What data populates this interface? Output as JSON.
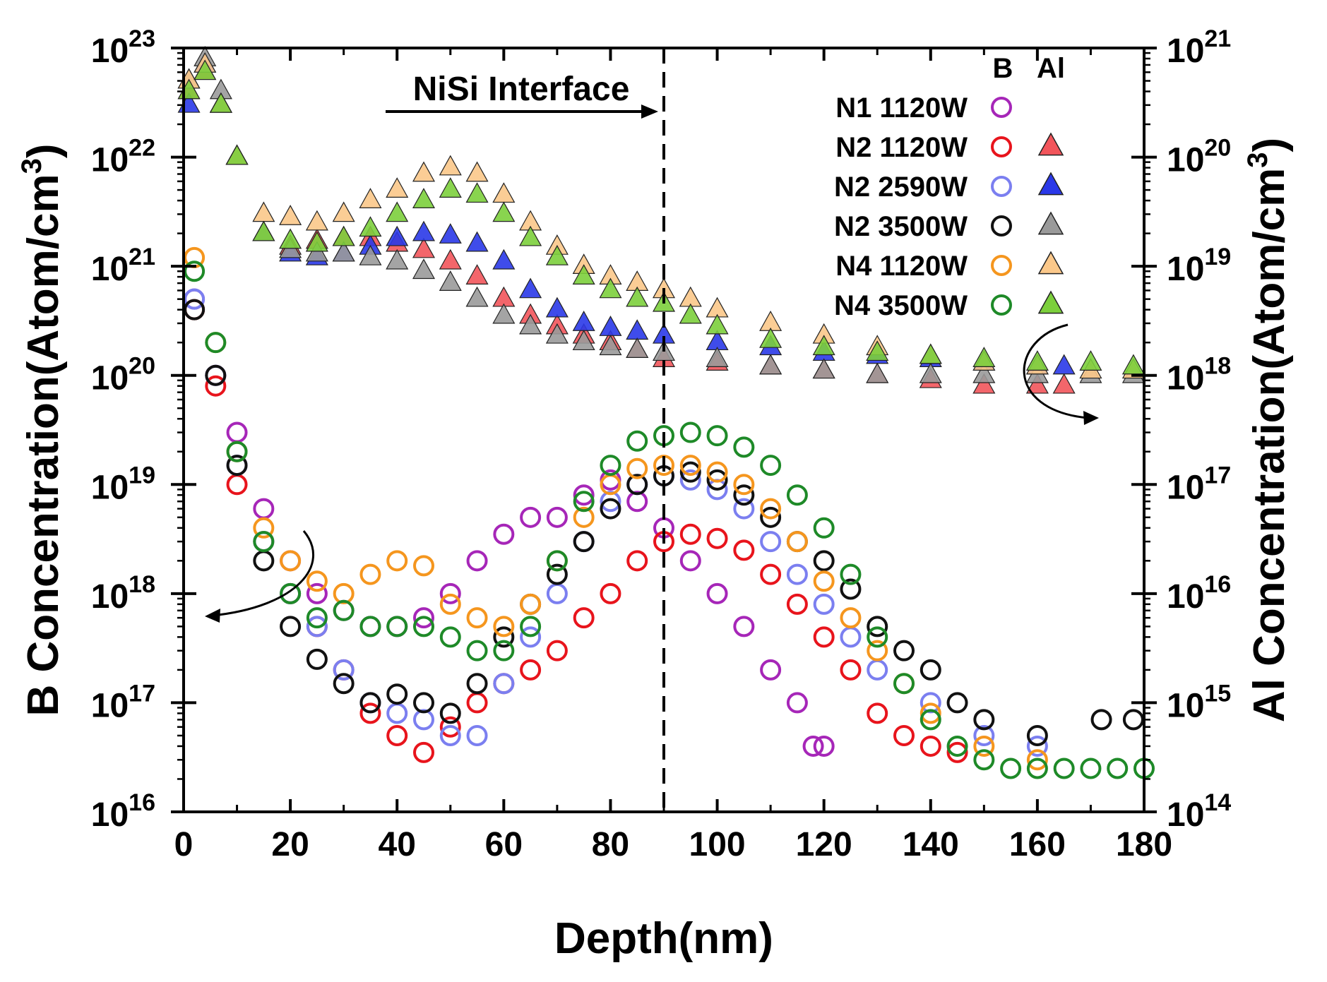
{
  "chart_data": {
    "type": "scatter",
    "title": "",
    "xlabel": "Depth(nm)",
    "ylabel_left": "B Concentration(Atom/cm3)",
    "ylabel_right": "Al Concentration(Atom/cm3)",
    "xlim": [
      0,
      180
    ],
    "ylim_left": [
      1e+16,
      1e+23
    ],
    "ylim_right": [
      100000000000000.0,
      1e+21
    ],
    "yscale": "log",
    "x_ticks": [
      0,
      20,
      40,
      60,
      80,
      100,
      120,
      140,
      160,
      180
    ],
    "y_left_ticks": [
      {
        "base": "10",
        "exp": "16"
      },
      {
        "base": "10",
        "exp": "17"
      },
      {
        "base": "10",
        "exp": "18"
      },
      {
        "base": "10",
        "exp": "19"
      },
      {
        "base": "10",
        "exp": "20"
      },
      {
        "base": "10",
        "exp": "21"
      },
      {
        "base": "10",
        "exp": "22"
      },
      {
        "base": "10",
        "exp": "23"
      }
    ],
    "y_right_ticks": [
      {
        "base": "10",
        "exp": "14"
      },
      {
        "base": "10",
        "exp": "15"
      },
      {
        "base": "10",
        "exp": "16"
      },
      {
        "base": "10",
        "exp": "17"
      },
      {
        "base": "10",
        "exp": "18"
      },
      {
        "base": "10",
        "exp": "19"
      },
      {
        "base": "10",
        "exp": "20"
      },
      {
        "base": "10",
        "exp": "21"
      }
    ],
    "annotation": {
      "text": "NiSi Interface",
      "interface_depth": 90
    },
    "legend": {
      "header_b": "B",
      "header_al": "Al",
      "entries": [
        {
          "label": "N1 1120W",
          "b_color": "#a626b8",
          "al_color": null
        },
        {
          "label": "N2 1120W",
          "b_color": "#e8141c",
          "al_color": "#f2555b"
        },
        {
          "label": "N2 2590W",
          "b_color": "#7b7ff0",
          "al_color": "#2a38e8"
        },
        {
          "label": "N2 3500W",
          "b_color": "#111111",
          "al_color": "#9a9a9a"
        },
        {
          "label": "N4 1120W",
          "b_color": "#f5961e",
          "al_color": "#fbc88a"
        },
        {
          "label": "N4 3500W",
          "b_color": "#1e8a28",
          "al_color": "#7ccf3c"
        }
      ]
    },
    "series_b": [
      {
        "name": "N1 1120W",
        "color": "#a626b8",
        "axis": "left",
        "x": [
          2,
          6,
          10,
          15,
          20,
          25,
          30,
          35,
          40,
          45,
          50,
          55,
          60,
          65,
          70,
          75,
          80,
          85,
          90,
          95,
          100,
          105,
          110,
          115,
          118,
          120
        ],
        "y": [
          5e+20,
          1e+20,
          3e+19,
          6e+18,
          2e+18,
          1e+18,
          7e+17,
          5e+17,
          5e+17,
          6e+17,
          1e+18,
          2e+18,
          3.5e+18,
          5e+18,
          5e+18,
          8e+18,
          1.1e+19,
          7e+18,
          4e+18,
          2e+18,
          1e+18,
          5e+17,
          2e+17,
          1e+17,
          4e+16,
          4e+16
        ]
      },
      {
        "name": "N2 1120W",
        "color": "#e8141c",
        "axis": "left",
        "x": [
          2,
          6,
          10,
          15,
          20,
          25,
          30,
          35,
          40,
          45,
          50,
          55,
          60,
          65,
          70,
          75,
          80,
          85,
          90,
          95,
          100,
          105,
          110,
          115,
          120,
          125,
          130,
          135,
          140,
          145
        ],
        "y": [
          4e+20,
          8e+19,
          1e+19,
          3e+18,
          1e+18,
          5e+17,
          2e+17,
          8e+16,
          5e+16,
          3.5e+16,
          6e+16,
          1e+17,
          1.5e+17,
          2e+17,
          3e+17,
          6e+17,
          1e+18,
          2e+18,
          3e+18,
          3.5e+18,
          3.2e+18,
          2.5e+18,
          1.5e+18,
          8e+17,
          4e+17,
          2e+17,
          8e+16,
          5e+16,
          4e+16,
          3.5e+16
        ]
      },
      {
        "name": "N2 2590W",
        "color": "#7b7ff0",
        "axis": "left",
        "x": [
          2,
          6,
          10,
          15,
          20,
          25,
          30,
          35,
          40,
          45,
          50,
          55,
          60,
          65,
          70,
          75,
          80,
          85,
          90,
          95,
          100,
          105,
          110,
          115,
          120,
          125,
          130,
          140,
          150,
          160
        ],
        "y": [
          5e+20,
          1e+20,
          1.5e+19,
          3e+18,
          1e+18,
          5e+17,
          2e+17,
          1e+17,
          8e+16,
          7e+16,
          5e+16,
          5e+16,
          1.5e+17,
          4e+17,
          1e+18,
          3e+18,
          7e+18,
          1e+19,
          1.2e+19,
          1.1e+19,
          9e+18,
          6e+18,
          3e+18,
          1.5e+18,
          8e+17,
          4e+17,
          2e+17,
          1e+17,
          5e+16,
          4e+16
        ]
      },
      {
        "name": "N2 3500W",
        "color": "#111111",
        "axis": "left",
        "x": [
          2,
          6,
          10,
          15,
          20,
          25,
          30,
          35,
          40,
          45,
          50,
          55,
          60,
          65,
          70,
          75,
          80,
          85,
          90,
          95,
          100,
          105,
          110,
          115,
          120,
          125,
          130,
          135,
          140,
          145,
          150,
          160,
          172,
          178
        ],
        "y": [
          4e+20,
          1e+20,
          1.5e+19,
          2e+18,
          5e+17,
          2.5e+17,
          1.5e+17,
          1e+17,
          1.2e+17,
          1e+17,
          8e+16,
          1.5e+17,
          4e+17,
          8e+17,
          1.5e+18,
          3e+18,
          6e+18,
          1e+19,
          1.2e+19,
          1.3e+19,
          1.1e+19,
          8e+18,
          5e+18,
          3e+18,
          2e+18,
          1.1e+18,
          5e+17,
          3e+17,
          2e+17,
          1e+17,
          7e+16,
          5e+16,
          7e+16,
          7e+16
        ]
      },
      {
        "name": "N4 1120W",
        "color": "#f5961e",
        "axis": "left",
        "x": [
          2,
          6,
          10,
          15,
          20,
          25,
          30,
          35,
          40,
          45,
          50,
          55,
          60,
          65,
          70,
          75,
          80,
          85,
          90,
          95,
          100,
          105,
          110,
          115,
          120,
          125,
          130,
          135,
          140,
          150,
          160
        ],
        "y": [
          1.2e+21,
          2e+20,
          2e+19,
          4e+18,
          2e+18,
          1.3e+18,
          1e+18,
          1.5e+18,
          2e+18,
          1.8e+18,
          8e+17,
          6e+17,
          5e+17,
          8e+17,
          2e+18,
          5e+18,
          1e+19,
          1.4e+19,
          1.5e+19,
          1.5e+19,
          1.3e+19,
          1e+19,
          6e+18,
          3e+18,
          1.3e+18,
          6e+17,
          3e+17,
          1.5e+17,
          8e+16,
          4e+16,
          3e+16
        ]
      },
      {
        "name": "N4 3500W",
        "color": "#1e8a28",
        "axis": "left",
        "x": [
          2,
          6,
          10,
          15,
          20,
          25,
          30,
          35,
          40,
          45,
          50,
          55,
          60,
          65,
          70,
          75,
          80,
          85,
          90,
          95,
          100,
          105,
          110,
          115,
          120,
          125,
          130,
          135,
          140,
          145,
          150,
          155,
          160,
          165,
          170,
          175,
          180
        ],
        "y": [
          9e+20,
          2e+20,
          2e+19,
          3e+18,
          1e+18,
          6e+17,
          7e+17,
          5e+17,
          5e+17,
          5e+17,
          4e+17,
          3e+17,
          3e+17,
          5e+17,
          2e+18,
          7e+18,
          1.5e+19,
          2.5e+19,
          2.8e+19,
          3e+19,
          2.8e+19,
          2.2e+19,
          1.5e+19,
          8e+18,
          4e+18,
          1.5e+18,
          4e+17,
          1.5e+17,
          7e+16,
          4e+16,
          3e+16,
          2.5e+16,
          2.5e+16,
          2.5e+16,
          2.5e+16,
          2.5e+16,
          2.5e+16
        ]
      }
    ],
    "series_al": [
      {
        "name": "N2 1120W",
        "color": "#f2555b",
        "axis": "right",
        "x": [
          1,
          4,
          7,
          10,
          15,
          20,
          25,
          30,
          35,
          40,
          45,
          50,
          55,
          60,
          65,
          70,
          75,
          80,
          85,
          90,
          100,
          110,
          120,
          130,
          140,
          150,
          160,
          165
        ],
        "y": [
          4e+20,
          6e+20,
          3e+20,
          1e+20,
          2e+19,
          1.5e+19,
          1.7e+19,
          1.8e+19,
          1.8e+19,
          1.6e+19,
          1.4e+19,
          1.1e+19,
          8e+18,
          5e+18,
          3.5e+18,
          2.8e+18,
          2.3e+18,
          2e+18,
          1.7e+18,
          1.4e+18,
          1.3e+18,
          1.2e+18,
          1.1e+18,
          1e+18,
          9e+17,
          8e+17,
          8e+17,
          8e+17
        ]
      },
      {
        "name": "N2 2590W",
        "color": "#2a38e8",
        "axis": "right",
        "x": [
          1,
          4,
          7,
          10,
          15,
          20,
          25,
          30,
          35,
          40,
          45,
          50,
          55,
          60,
          65,
          70,
          75,
          80,
          85,
          90,
          100,
          110,
          120,
          130,
          140,
          150,
          160,
          165
        ],
        "y": [
          3e+20,
          7e+20,
          3e+20,
          1e+20,
          2e+19,
          1.3e+19,
          1.2e+19,
          1.3e+19,
          1.5e+19,
          1.8e+19,
          2e+19,
          1.9e+19,
          1.6e+19,
          1.1e+19,
          6e+18,
          4e+18,
          3e+18,
          2.7e+18,
          2.5e+18,
          2.3e+18,
          2e+18,
          1.8e+18,
          1.6e+18,
          1.5e+18,
          1.4e+18,
          1.3e+18,
          1.2e+18,
          1.2e+18
        ]
      },
      {
        "name": "N2 3500W",
        "color": "#9a9a9a",
        "axis": "right",
        "x": [
          1,
          4,
          7,
          10,
          15,
          20,
          25,
          30,
          35,
          40,
          45,
          50,
          55,
          60,
          65,
          70,
          75,
          80,
          85,
          90,
          100,
          110,
          120,
          130,
          140,
          150,
          160,
          170,
          178
        ],
        "y": [
          5e+20,
          8e+20,
          4e+20,
          1e+20,
          2e+19,
          1.4e+19,
          1.3e+19,
          1.3e+19,
          1.2e+19,
          1.1e+19,
          9e+18,
          7e+18,
          5e+18,
          3.5e+18,
          2.8e+18,
          2.3e+18,
          2e+18,
          1.8e+18,
          1.7e+18,
          1.6e+18,
          1.4e+18,
          1.2e+18,
          1.1e+18,
          1e+18,
          1e+18,
          1e+18,
          1e+18,
          1e+18,
          1e+18
        ]
      },
      {
        "name": "N4 1120W",
        "color": "#fbc88a",
        "axis": "right",
        "x": [
          1,
          4,
          7,
          10,
          15,
          20,
          25,
          30,
          35,
          40,
          45,
          50,
          55,
          60,
          65,
          70,
          75,
          80,
          85,
          90,
          95,
          100,
          110,
          120,
          130,
          140,
          150,
          160,
          170,
          178
        ],
        "y": [
          5e+20,
          7e+20,
          3e+20,
          1e+20,
          3e+19,
          2.8e+19,
          2.5e+19,
          3e+19,
          4e+19,
          5e+19,
          7e+19,
          8e+19,
          7e+19,
          4.5e+19,
          2.5e+19,
          1.5e+19,
          1e+19,
          8e+18,
          7e+18,
          6e+18,
          5e+18,
          4e+18,
          3e+18,
          2.3e+18,
          1.8e+18,
          1.5e+18,
          1.3e+18,
          1.2e+18,
          1.1e+18,
          1.1e+18
        ]
      },
      {
        "name": "N4 3500W",
        "color": "#7ccf3c",
        "axis": "right",
        "x": [
          1,
          4,
          7,
          10,
          15,
          20,
          25,
          30,
          35,
          40,
          45,
          50,
          55,
          60,
          65,
          70,
          75,
          80,
          85,
          90,
          95,
          100,
          110,
          120,
          130,
          140,
          150,
          160,
          170,
          178
        ],
        "y": [
          4e+20,
          6e+20,
          3e+20,
          1e+20,
          2e+19,
          1.7e+19,
          1.6e+19,
          1.8e+19,
          2.2e+19,
          3e+19,
          4e+19,
          5e+19,
          4.5e+19,
          3e+19,
          1.8e+19,
          1.2e+19,
          8e+18,
          6e+18,
          5e+18,
          4.5e+18,
          3.5e+18,
          2.8e+18,
          2.1e+18,
          1.8e+18,
          1.6e+18,
          1.5e+18,
          1.4e+18,
          1.3e+18,
          1.3e+18,
          1.2e+18
        ]
      }
    ]
  }
}
